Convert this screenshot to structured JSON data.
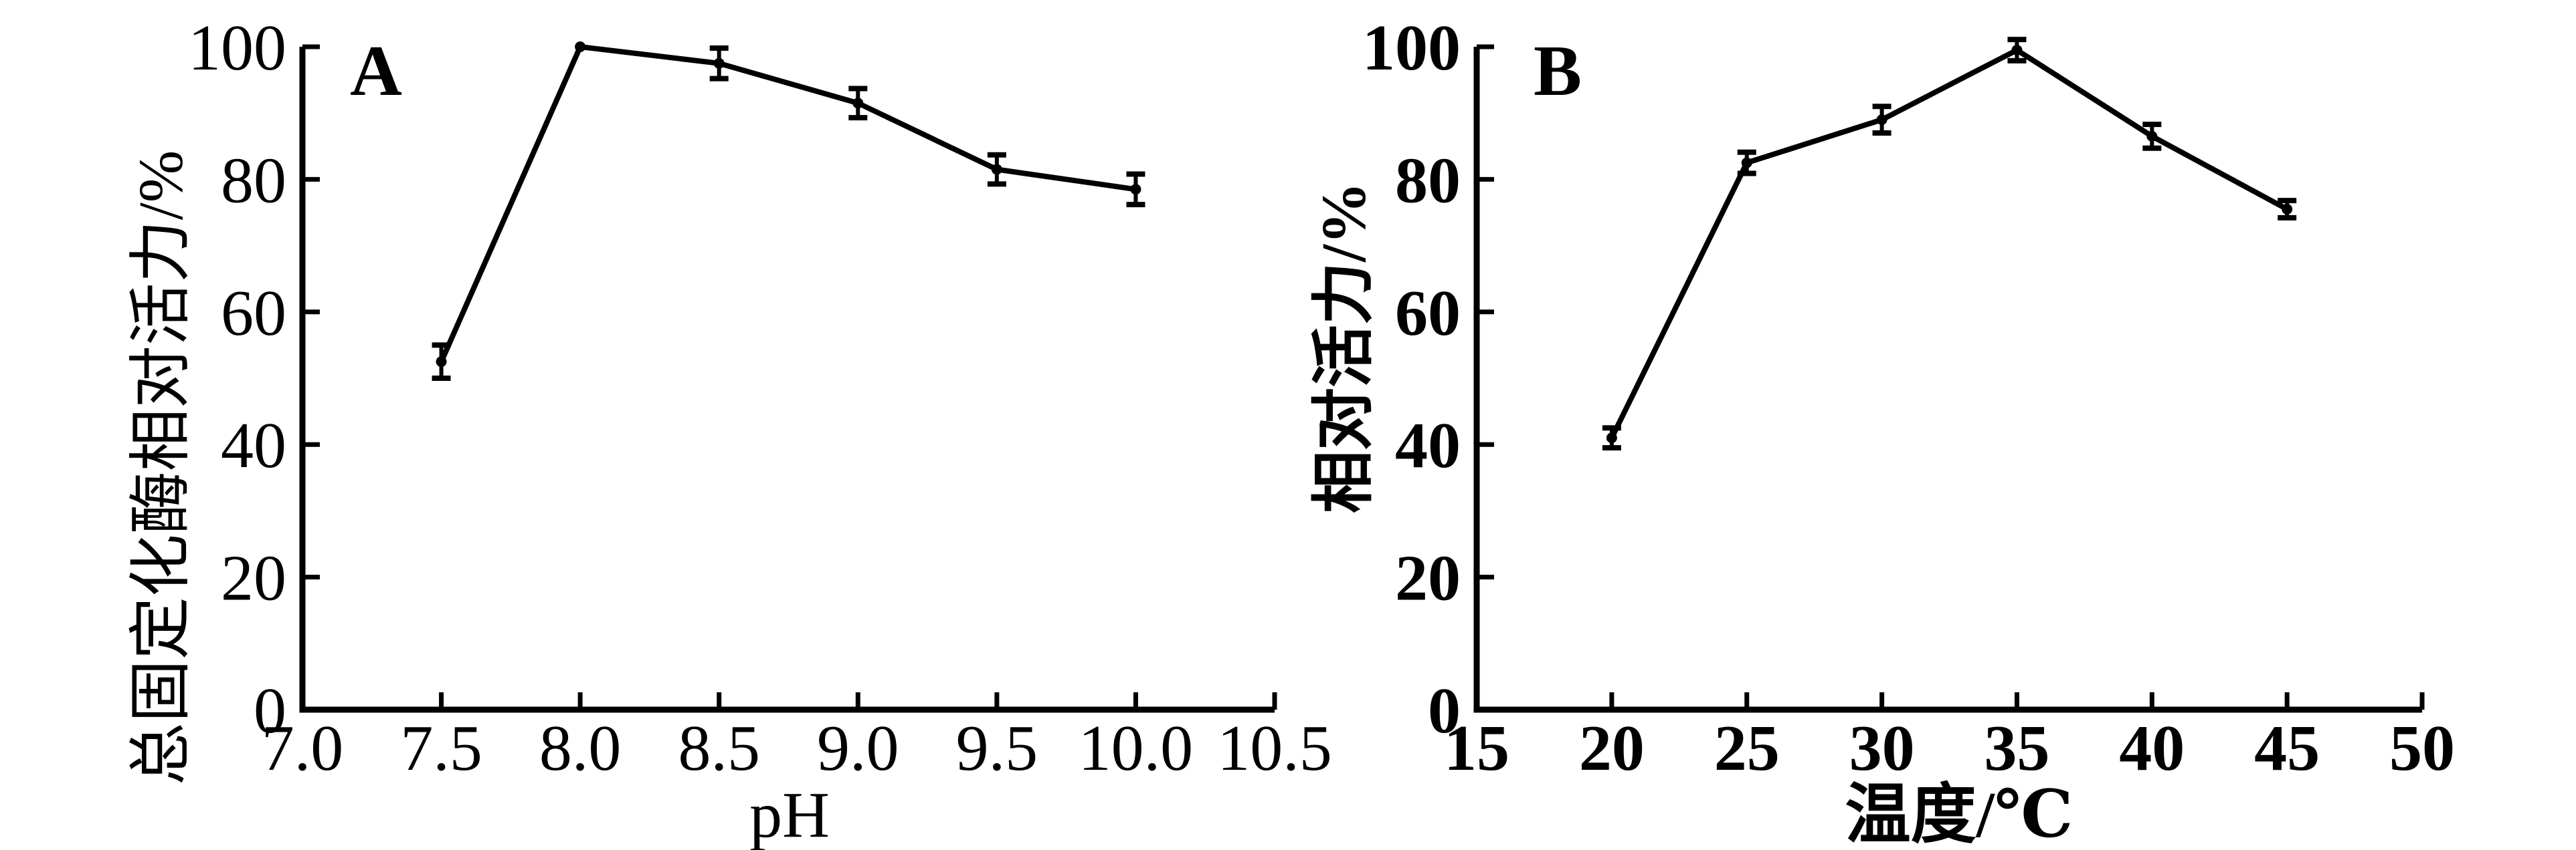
{
  "figure": {
    "background": "#ffffff",
    "ink_color": "#000000",
    "description": "Two-panel line figure with error bars",
    "panel_labels": [
      "A",
      "B"
    ]
  },
  "chart_data": [
    {
      "type": "line",
      "panel_label": "A",
      "title": "",
      "xlabel": "pH",
      "ylabel": "总固定化酶相对活力/%",
      "xlim": [
        7.0,
        10.5
      ],
      "ylim": [
        0,
        100
      ],
      "xticks": [
        7.0,
        7.5,
        8.0,
        8.5,
        9.0,
        9.5,
        10.0,
        10.5
      ],
      "xtick_labels": [
        "7.0",
        "7.5",
        "8.0",
        "8.5",
        "9.0",
        "9.5",
        "10.0",
        "10.5"
      ],
      "yticks": [
        0,
        20,
        40,
        60,
        80,
        100
      ],
      "ytick_labels": [
        "0",
        "20",
        "40",
        "60",
        "80",
        "100"
      ],
      "grid": false,
      "legend": "none",
      "series": [
        {
          "name": "总固定化酶相对活力",
          "x": [
            7.5,
            8.0,
            8.5,
            9.0,
            9.5,
            10.0
          ],
          "values": [
            52.5,
            100,
            97.5,
            91.5,
            81.5,
            78.5
          ],
          "errors": [
            2.5,
            0,
            2.3,
            2.2,
            2.2,
            2.3
          ],
          "color": "#000000",
          "marker": "dot",
          "error_bars": true
        }
      ]
    },
    {
      "type": "line",
      "panel_label": "B",
      "title": "",
      "xlabel": "温度/℃",
      "ylabel": "相对活力/%",
      "xlim": [
        15,
        50
      ],
      "ylim": [
        0,
        100
      ],
      "xticks": [
        15,
        20,
        25,
        30,
        35,
        40,
        45,
        50
      ],
      "xtick_labels": [
        "15",
        "20",
        "25",
        "30",
        "35",
        "40",
        "45",
        "50"
      ],
      "yticks": [
        0,
        20,
        40,
        60,
        80,
        100
      ],
      "ytick_labels": [
        "0",
        "20",
        "40",
        "60",
        "80",
        "100"
      ],
      "grid": false,
      "legend": "none",
      "series": [
        {
          "name": "相对活力",
          "x": [
            20,
            25,
            30,
            35,
            40,
            45
          ],
          "values": [
            41,
            82.5,
            89,
            99.5,
            86.5,
            75.5
          ],
          "errors": [
            1.5,
            1.6,
            2.0,
            1.6,
            1.8,
            1.3
          ],
          "color": "#000000",
          "marker": "dot",
          "error_bars": true
        }
      ]
    }
  ]
}
